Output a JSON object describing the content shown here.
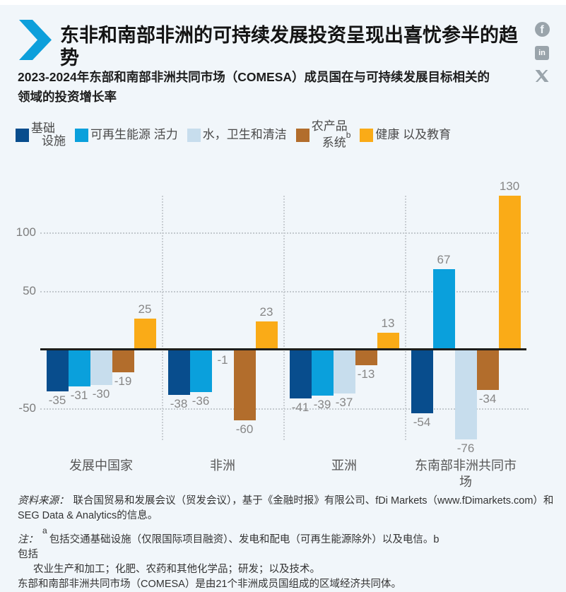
{
  "header": {
    "title": "东非和南部非洲的可持续发展投资呈现出喜忧参半的趋势",
    "social": {
      "facebook": "f",
      "linkedin": "in",
      "x": "X"
    }
  },
  "subtitle": "2023-2024年东部和南部非洲共同市场（COMESA）成员国在与可持续发展目标相关的领域的投资增长率",
  "legend": {
    "items": [
      {
        "color": "#084d8d",
        "lines": [
          "基础",
          "设施"
        ],
        "sup": ""
      },
      {
        "color": "#0aa0dc",
        "lines": [
          "可再生能源 活力"
        ],
        "sup": ""
      },
      {
        "color": "#c7dded",
        "lines": [
          "水，卫生和清洁"
        ],
        "sup": ""
      },
      {
        "color": "#b26d2c",
        "lines": [
          "农产品",
          "系统"
        ],
        "sup": "b"
      },
      {
        "color": "#faab17",
        "lines": [
          "健康 以及教育"
        ],
        "sup": ""
      }
    ]
  },
  "chart_data": {
    "type": "bar",
    "categories": [
      "发展中国家",
      "非洲",
      "亚洲",
      "东南部非洲共同市场"
    ],
    "series": [
      {
        "name": "基础设施",
        "color": "#084d8d",
        "values": [
          -35,
          -38,
          -41,
          -54
        ]
      },
      {
        "name": "可再生能源",
        "color": "#0aa0dc",
        "values": [
          -31,
          -36,
          -39,
          67
        ]
      },
      {
        "name": "水，卫生和清洁",
        "color": "#c7dded",
        "values": [
          -30,
          -1,
          -37,
          -76
        ]
      },
      {
        "name": "农产品系统",
        "color": "#b26d2c",
        "values": [
          -19,
          -60,
          -13,
          -34
        ]
      },
      {
        "name": "健康以及教育",
        "color": "#faab17",
        "values": [
          25,
          23,
          13,
          130
        ]
      }
    ],
    "yticks": [
      100,
      50,
      -50
    ],
    "ylim": [
      -77,
      131
    ],
    "grid": "horizontal-dotted",
    "legend_position": "top",
    "xlabel": "",
    "ylabel": ""
  },
  "footer": {
    "source_label": "资料来源：",
    "source_text": "联合国贸易和发展会议（贸发会议），基于《金融时报》有限公司、fDi Markets（www.fDimarkets.com）和SEG Data & Analytics的信息。",
    "note_label": "注：",
    "note_sup": "a",
    "note_a": "包括交通基础设施（仅限国际项目融资）、发电和配电（可再生能源除外）以及电信。b",
    "note_b_lead": "包括",
    "note_b": "农业生产和加工；化肥、农药和其他化学品；研发；以及技术。",
    "note_comesa": "东部和南部非洲共同市场（COMESA）是由21个非洲成员国组成的区域经济共同体。"
  },
  "colors": {
    "accent_arrow": "#0d9fdb",
    "background": "#f1f6fa",
    "zero_line": "#1d1d1b",
    "grid": "#c3c9ce",
    "label_gray": "#868686",
    "social_gray": "#9aa4ab"
  }
}
